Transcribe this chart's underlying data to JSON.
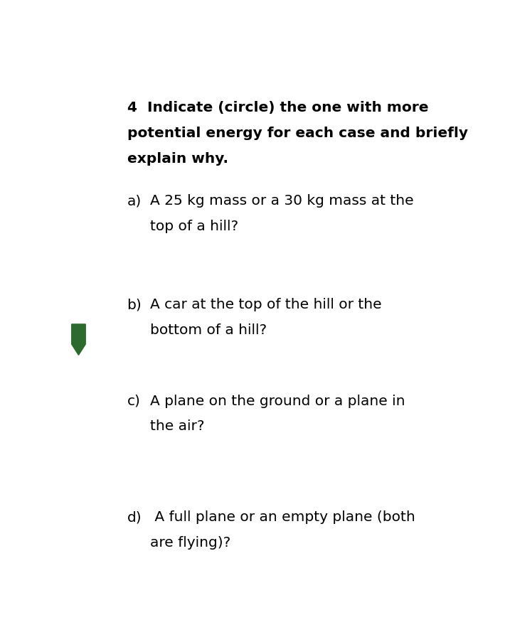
{
  "background_color": "#ffffff",
  "marker_color": "#2d6a2d",
  "title_num": "4",
  "title_line1": "    Indicate (circle) the one with more",
  "title_line2": "potential energy for each case and briefly",
  "title_line3": "explain why.",
  "q_a_label": "a)",
  "q_a_line1": "A 25 kg mass or a 30 kg mass at the",
  "q_a_line2": "top of a hill?",
  "q_b_label": "b)",
  "q_b_line1": "A car at the top of the hill or the",
  "q_b_line2": "bottom of a hill?",
  "q_c_label": "c)",
  "q_c_line1": "A plane on the ground or a plane in",
  "q_c_line2": "the air?",
  "q_d_label": "d)",
  "q_d_line1": " A full plane or an empty plane (both",
  "q_d_line2": "are flying)?",
  "font_size": 14.5,
  "title_font_size": 14.5
}
